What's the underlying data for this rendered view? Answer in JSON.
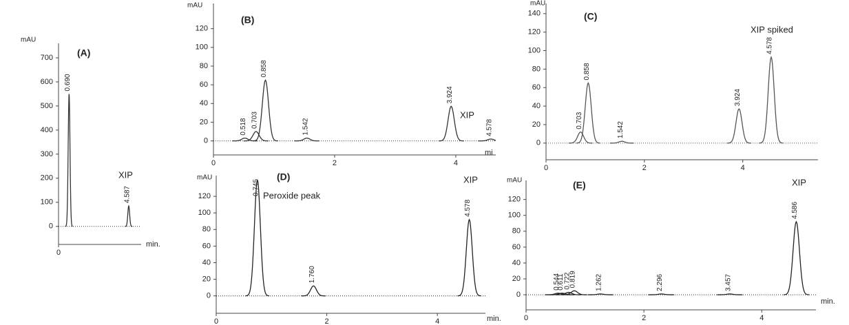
{
  "chart_data": [
    {
      "type": "line",
      "title": "(A)",
      "ylabel": "mAU",
      "xlabel": "min.",
      "annotations": [
        "XIP"
      ],
      "xlim": [
        0,
        5.4
      ],
      "ylim": [
        -75,
        760
      ],
      "xticks": [
        0
      ],
      "yticks": [
        0,
        100,
        200,
        300,
        400,
        500,
        600,
        700
      ],
      "x": [
        0.69,
        4.587
      ],
      "values": [
        550,
        85
      ],
      "peak_labels": [
        "0.690",
        "4.587"
      ],
      "color": "#333333"
    },
    {
      "type": "line",
      "title": "(B)",
      "ylabel": "mAU",
      "xlabel": "mi",
      "annotations": [
        "XIP"
      ],
      "xlim": [
        0,
        4.66
      ],
      "ylim": [
        -15,
        147
      ],
      "xticks": [
        0,
        2,
        4
      ],
      "yticks": [
        0,
        20,
        40,
        60,
        80,
        100,
        120
      ],
      "x": [
        0.518,
        0.703,
        0.858,
        1.542,
        3.924,
        4.578
      ],
      "values": [
        3,
        10,
        65,
        3,
        37,
        2
      ],
      "peak_labels": [
        "0.518",
        "0.703",
        "0.858",
        "1.542",
        "3.924",
        "4.578"
      ],
      "color": "#333333"
    },
    {
      "type": "line",
      "title": "(C)",
      "ylabel": "mAU",
      "annotations": [
        "XIP spiked"
      ],
      "xlim": [
        0,
        5.53
      ],
      "ylim": [
        -18,
        151
      ],
      "xticks": [
        0,
        2,
        4
      ],
      "yticks": [
        0,
        20,
        40,
        60,
        80,
        100,
        120,
        140
      ],
      "x": [
        0.703,
        0.858,
        1.542,
        3.924,
        4.578
      ],
      "values": [
        12,
        65,
        2,
        37,
        93
      ],
      "peak_labels": [
        "0.703",
        "0.858",
        "1.542",
        "3.924",
        "4.578"
      ],
      "color": "#555555"
    },
    {
      "type": "line",
      "title": "(D)",
      "ylabel": "mAU",
      "xlabel": "min.",
      "annotations": [
        "Peroxide peak",
        "XIP"
      ],
      "xlim": [
        0,
        4.87
      ],
      "ylim": [
        -21,
        145
      ],
      "xticks": [
        0,
        2,
        4
      ],
      "yticks": [
        0,
        20,
        40,
        60,
        80,
        100,
        120
      ],
      "x": [
        0.745,
        1.76,
        4.578
      ],
      "values": [
        140,
        12,
        92
      ],
      "peak_labels": [
        "0.745",
        "1.760",
        "4.578"
      ],
      "color": "#222222"
    },
    {
      "type": "line",
      "title": "(E)",
      "ylabel": "mAU",
      "xlabel": "min.",
      "annotations": [
        "XIP"
      ],
      "xlim": [
        0,
        4.92
      ],
      "ylim": [
        -19,
        144
      ],
      "xticks": [
        0,
        2,
        4
      ],
      "yticks": [
        0,
        20,
        40,
        60,
        80,
        100,
        120
      ],
      "x": [
        0.544,
        0.611,
        0.722,
        0.819,
        1.262,
        2.296,
        3.457,
        4.586
      ],
      "values": [
        2,
        2,
        3,
        5,
        1,
        1,
        1,
        92
      ],
      "peak_labels": [
        "0.544",
        "0.611",
        "0.722",
        "0.819",
        "1.262",
        "2.296",
        "3.457",
        "4.586"
      ],
      "color": "#222222"
    }
  ]
}
